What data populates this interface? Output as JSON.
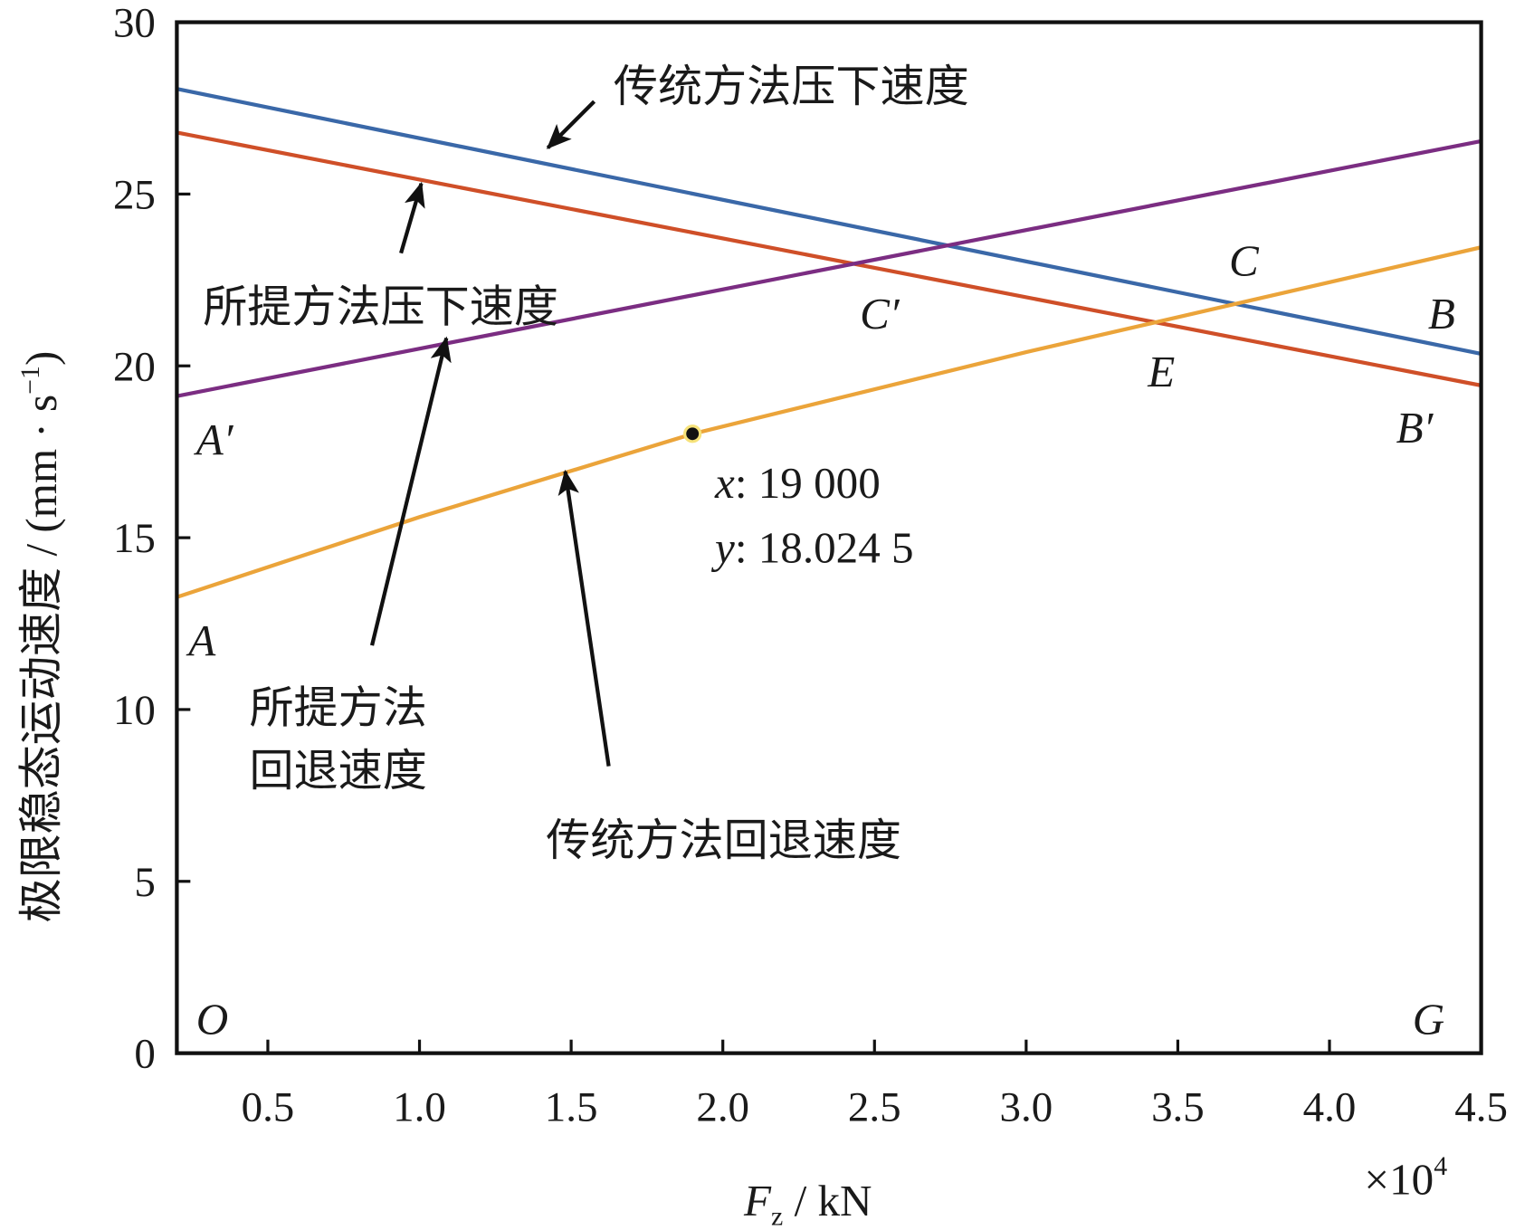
{
  "chart_data": {
    "type": "line",
    "title": "",
    "xlabel": "F_z / kN",
    "xlabel_main": "F",
    "xlabel_sub": "z",
    "xlabel_unit": " / kN",
    "x_multiplier": "×10",
    "x_multiplier_exp": "4",
    "ylabel": "极限稳态运动速度 / (mm · s⁻¹)",
    "ylabel_text": "极限稳态运动速度 / (mm · s",
    "ylabel_exp": "−1",
    "ylabel_close": ")",
    "xlim": [
      0.2,
      4.5
    ],
    "ylim": [
      0,
      30
    ],
    "xticks": [
      "0.5",
      "1.0",
      "1.5",
      "2.0",
      "2.5",
      "3.0",
      "3.5",
      "4.0",
      "4.5"
    ],
    "xtick_values": [
      0.5,
      1.0,
      1.5,
      2.0,
      2.5,
      3.0,
      3.5,
      4.0,
      4.5
    ],
    "yticks": [
      "0",
      "5",
      "10",
      "15",
      "20",
      "25",
      "30"
    ],
    "ytick_values": [
      0,
      5,
      10,
      15,
      20,
      25,
      30
    ],
    "grid": false,
    "series": [
      {
        "name": "传统方法压下速度",
        "color": "#3a68a8",
        "x": [
          0.2,
          4.5
        ],
        "y": [
          28.06,
          20.35
        ]
      },
      {
        "name": "所提方法压下速度",
        "color": "#cf4f28",
        "x": [
          0.2,
          4.5
        ],
        "y": [
          26.79,
          19.43
        ]
      },
      {
        "name": "所提方法回退速度",
        "color": "#7b2d82",
        "x": [
          0.2,
          4.5
        ],
        "y": [
          19.12,
          26.54
        ]
      },
      {
        "name": "传统方法回退速度",
        "color": "#eba43a",
        "x": [
          0.2,
          1.0,
          1.9,
          3.0,
          4.5
        ],
        "y": [
          13.27,
          15.6,
          18.02,
          20.4,
          23.45
        ]
      }
    ],
    "datatip": {
      "x": 1.9,
      "y": 18.0245,
      "x_label": "x",
      "x_text": ": 19 000",
      "y_label": "y",
      "y_text": ": 18.024 5"
    },
    "annotations": [
      {
        "text": "传统方法压下速度"
      },
      {
        "text": "所提方法压下速度"
      },
      {
        "text": "所提方法",
        "text2": "回退速度"
      },
      {
        "text": "传统方法回退速度"
      }
    ],
    "point_labels": [
      "C",
      "C′",
      "B",
      "E",
      "A′",
      "B′",
      "A",
      "O",
      "G"
    ]
  }
}
